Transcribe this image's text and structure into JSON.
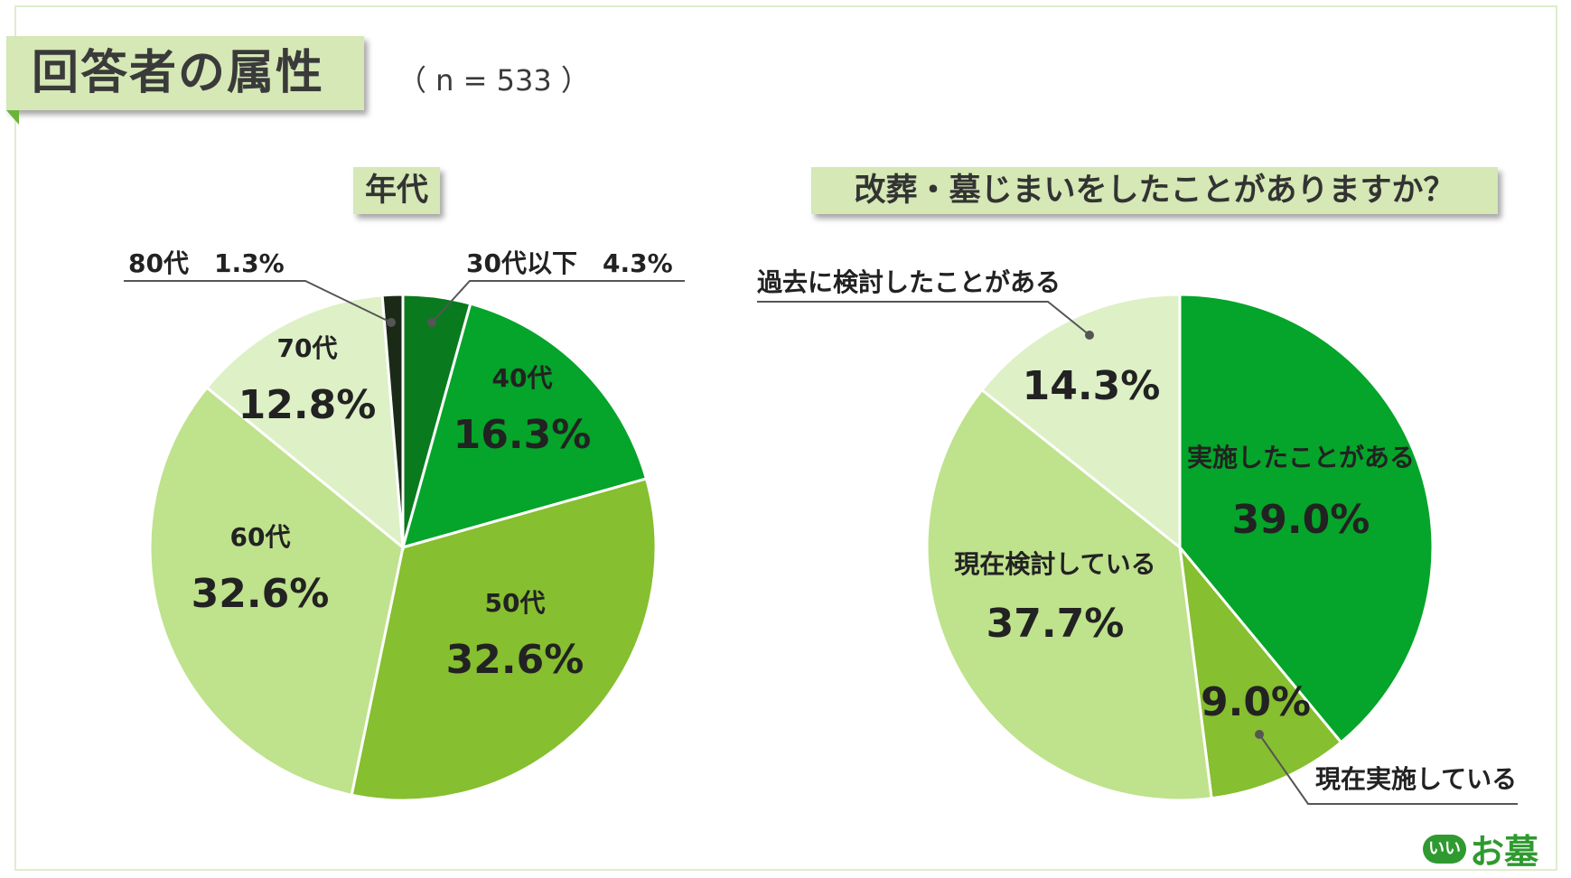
{
  "title": "回答者の属性",
  "sample_size": "（ n = 533 ）",
  "logo": {
    "badge": "いい",
    "text": "お墓"
  },
  "chart_data": [
    {
      "type": "pie",
      "title": "年代",
      "start_angle": 0,
      "slices": [
        {
          "label": "30代以下",
          "value": 4.3,
          "display": "4.3%",
          "color": "#0a7a1f",
          "callout": true
        },
        {
          "label": "40代",
          "value": 16.3,
          "display": "16.3%",
          "color": "#05a42a",
          "callout": false
        },
        {
          "label": "50代",
          "value": 32.6,
          "display": "32.6%",
          "color": "#86bf2f",
          "callout": false
        },
        {
          "label": "60代",
          "value": 32.6,
          "display": "32.6%",
          "color": "#bfe28c",
          "callout": false
        },
        {
          "label": "70代",
          "value": 12.8,
          "display": "12.8%",
          "color": "#def0c6",
          "callout": false
        },
        {
          "label": "80代",
          "value": 1.3,
          "display": "1.3%",
          "color": "#1b2a16",
          "callout": true
        }
      ]
    },
    {
      "type": "pie",
      "title": "改葬・墓じまいをしたことがありますか？",
      "start_angle": 0,
      "slices": [
        {
          "label": "実施したことがある",
          "value": 39.0,
          "display": "39.0%",
          "color": "#05a42a",
          "callout": false
        },
        {
          "label": "現在実施している",
          "value": 9.0,
          "display": "9.0%",
          "color": "#86bf2f",
          "callout": true
        },
        {
          "label": "現在検討している",
          "value": 37.7,
          "display": "37.7%",
          "color": "#bfe28c",
          "callout": false
        },
        {
          "label": "過去に検討したことがある",
          "value": 14.3,
          "display": "14.3%",
          "color": "#def0c6",
          "callout": true
        }
      ]
    }
  ]
}
